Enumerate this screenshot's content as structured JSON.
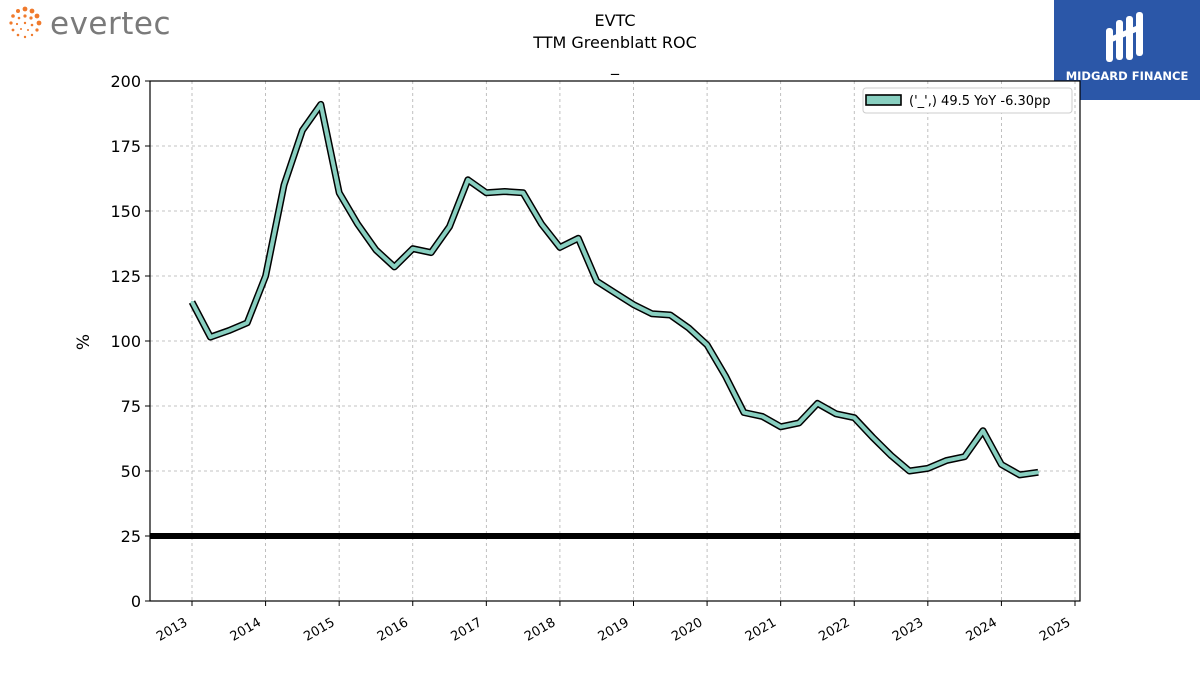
{
  "header": {
    "left_logo_text": "evertec",
    "right_logo_text": "MIDGARD FINANCE"
  },
  "chart_data": {
    "type": "line",
    "title": "EVTC",
    "subtitle": "TTM Greenblatt ROC",
    "subtitle2": "_",
    "xlabel": "",
    "ylabel": "%",
    "xlim": [
      2012.6,
      2025.05
    ],
    "ylim": [
      0,
      200
    ],
    "x_ticks": [
      "2013",
      "2014",
      "2015",
      "2016",
      "2017",
      "2018",
      "2019",
      "2020",
      "2021",
      "2022",
      "2023",
      "2024",
      "2025"
    ],
    "y_ticks": [
      0,
      25,
      50,
      75,
      100,
      125,
      150,
      175,
      200
    ],
    "grid": true,
    "legend_position": "top-right",
    "legend_label": "('_',) 49.5 YoY -6.30pp",
    "series": [
      {
        "color": "#88cfc0",
        "x": [
          2013.0,
          2013.25,
          2013.5,
          2013.75,
          2014.0,
          2014.25,
          2014.5,
          2014.75,
          2015.0,
          2015.25,
          2015.5,
          2015.75,
          2016.0,
          2016.25,
          2016.5,
          2016.75,
          2017.0,
          2017.25,
          2017.5,
          2017.75,
          2018.0,
          2018.25,
          2018.5,
          2018.75,
          2019.0,
          2019.25,
          2019.5,
          2019.75,
          2020.0,
          2020.25,
          2020.5,
          2020.75,
          2021.0,
          2021.25,
          2021.5,
          2021.75,
          2022.0,
          2022.25,
          2022.5,
          2022.75,
          2023.0,
          2023.25,
          2023.5,
          2023.75,
          2024.0,
          2024.25,
          2024.5
        ],
        "values": [
          115,
          101.5,
          104,
          107,
          125,
          160,
          181,
          191,
          157,
          145,
          135,
          128.5,
          135.5,
          134,
          144,
          162,
          157,
          157.5,
          157,
          145,
          136,
          139.5,
          123,
          118.5,
          114,
          110.5,
          110,
          105,
          98.5,
          86.5,
          72.5,
          71,
          67,
          68.5,
          76,
          72,
          70.5,
          63,
          56,
          50,
          51,
          54,
          55.5,
          65.5,
          52.5,
          48.5,
          49.5
        ]
      }
    ],
    "reference_line": {
      "y": 25,
      "color": "#000000"
    }
  }
}
